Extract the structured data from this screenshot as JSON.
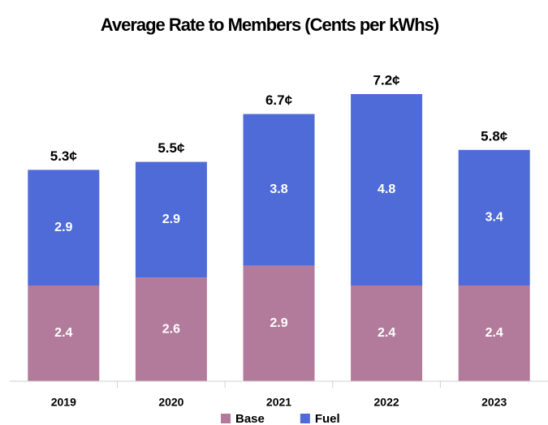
{
  "chart_data": {
    "type": "stacked_bar",
    "title": "Average Rate to Members (Cents per kWhs)",
    "categories": [
      "2019",
      "2020",
      "2021",
      "2022",
      "2023"
    ],
    "series": [
      {
        "name": "Base",
        "color": "#b27b9b",
        "values": [
          2.4,
          2.6,
          2.9,
          2.4,
          2.4
        ]
      },
      {
        "name": "Fuel",
        "color": "#4f6bd8",
        "values": [
          2.9,
          2.9,
          3.8,
          4.8,
          3.4
        ]
      }
    ],
    "totals": [
      5.3,
      5.5,
      6.7,
      7.2,
      5.8
    ],
    "total_labels": [
      "5.3¢",
      "5.5¢",
      "6.7¢",
      "7.2¢",
      "5.8¢"
    ],
    "legend": "bottom"
  }
}
